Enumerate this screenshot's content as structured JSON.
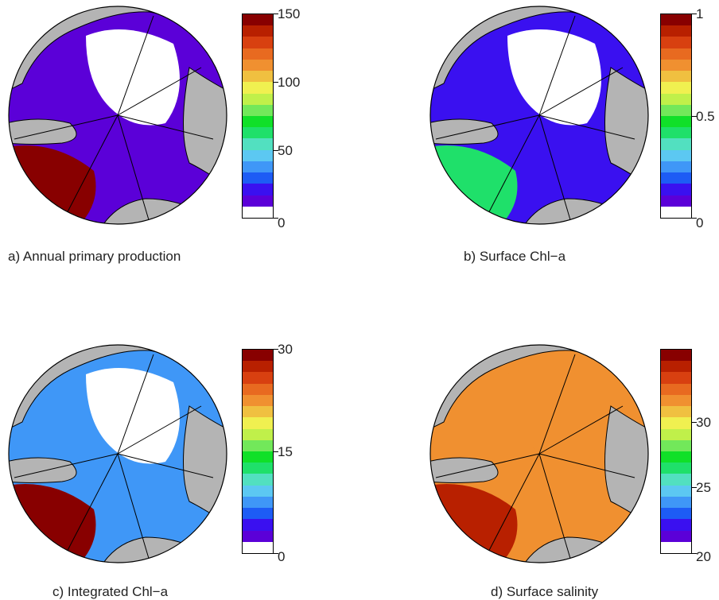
{
  "colormap": [
    "#ffffff",
    "#5b00d8",
    "#3a10f0",
    "#1d5cf5",
    "#3f97f7",
    "#5cc8f2",
    "#52e0c0",
    "#1fe06a",
    "#10e028",
    "#72e85a",
    "#c0f04a",
    "#f0f050",
    "#f0c040",
    "#f09030",
    "#e86a20",
    "#d84010",
    "#b82000",
    "#880000"
  ],
  "panels": [
    {
      "id": "a",
      "caption": "a) Annual primary production",
      "ticks": [
        "150",
        "100",
        "50",
        "0"
      ],
      "tick_values": [
        150,
        100,
        50,
        0
      ],
      "range": [
        0,
        150
      ],
      "dominant_colors": {
        "north": "#ffffff",
        "center": "#5b00d8",
        "bottom_left": "#880000"
      }
    },
    {
      "id": "b",
      "caption": "b) Surface Chl−a",
      "ticks": [
        "1",
        "0.5",
        "0"
      ],
      "tick_values": [
        1,
        0.5,
        0
      ],
      "range": [
        0,
        1
      ],
      "dominant_colors": {
        "north": "#ffffff",
        "center": "#3a10f0",
        "bottom_left": "#1fe06a"
      }
    },
    {
      "id": "c",
      "caption": "c) Integrated Chl−a",
      "ticks": [
        "30",
        "15",
        "0"
      ],
      "tick_values": [
        30,
        15,
        0
      ],
      "range": [
        0,
        30
      ],
      "dominant_colors": {
        "north": "#ffffff",
        "center": "#3f97f7",
        "bottom_left": "#880000"
      }
    },
    {
      "id": "d",
      "caption": "d) Surface salinity",
      "ticks": [
        "30",
        "25",
        "20"
      ],
      "tick_values": [
        30,
        25,
        20
      ],
      "range": [
        20,
        35
      ],
      "dominant_colors": {
        "north": "#f09030",
        "center": "#f09030",
        "bottom_left": "#b82000"
      }
    }
  ]
}
